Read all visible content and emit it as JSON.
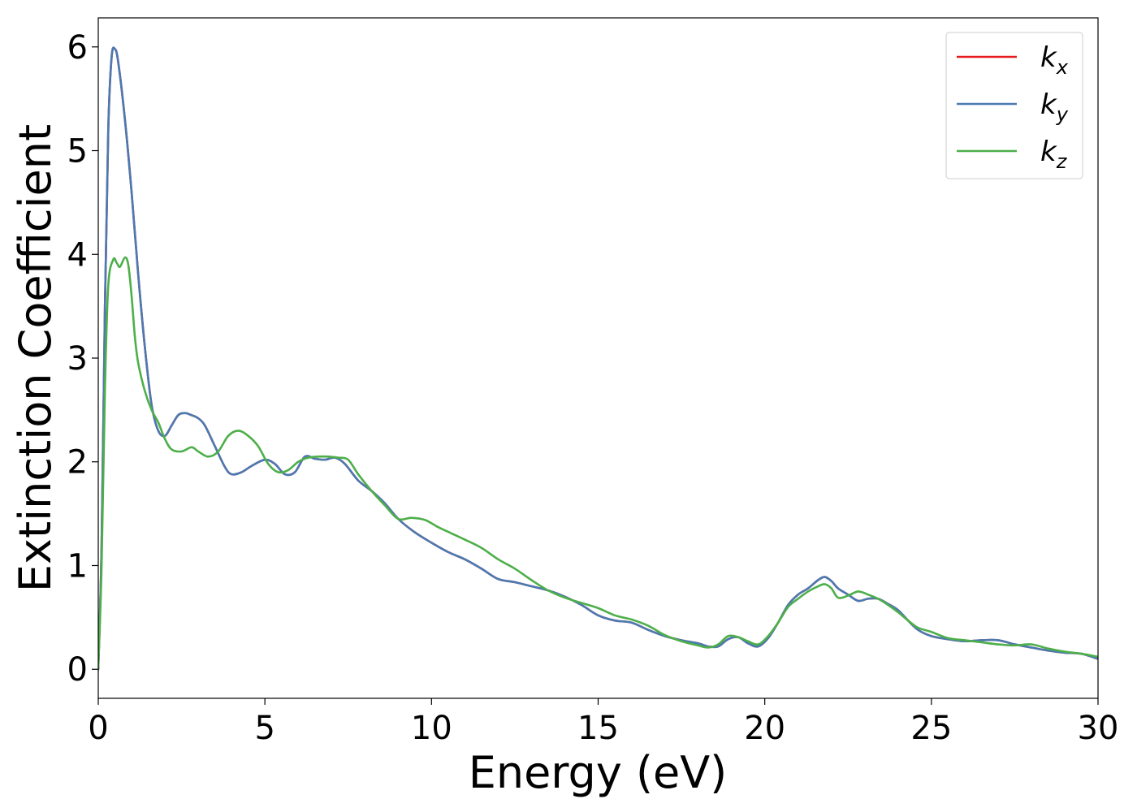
{
  "chart_data": {
    "type": "line",
    "xlabel": "Energy (eV)",
    "ylabel": "Extinction Coefficient",
    "xlim": [
      0,
      30
    ],
    "ylim": [
      -0.28,
      6.28
    ],
    "xticks": [
      "0",
      "5",
      "10",
      "15",
      "20",
      "25",
      "30"
    ],
    "yticks": [
      "0",
      "1",
      "2",
      "3",
      "4",
      "5",
      "6"
    ],
    "grid": false,
    "legend_position": "top-right",
    "series": [
      {
        "name": "k_x",
        "label_base": "k",
        "label_sub": "x",
        "color": "#e41a1c",
        "x": [
          0,
          0.1,
          0.2,
          0.3,
          0.4,
          0.5,
          0.6,
          0.8,
          1.0,
          1.2,
          1.4,
          1.6,
          1.8,
          2.0,
          2.2,
          2.4,
          2.6,
          2.8,
          3.0,
          3.2,
          3.5,
          3.8,
          4.0,
          4.3,
          4.6,
          5.0,
          5.3,
          5.6,
          5.9,
          6.2,
          6.5,
          6.8,
          7.1,
          7.4,
          7.8,
          8.2,
          8.6,
          9.0,
          9.5,
          10.0,
          10.5,
          11.0,
          11.5,
          12.0,
          12.5,
          13.0,
          13.5,
          14.0,
          14.5,
          15.0,
          15.5,
          16.0,
          16.5,
          17.0,
          17.5,
          18.0,
          18.3,
          18.6,
          18.9,
          19.2,
          19.5,
          19.8,
          20.1,
          20.4,
          20.7,
          21.0,
          21.3,
          21.6,
          21.8,
          22.0,
          22.2,
          22.5,
          22.8,
          23.1,
          23.4,
          23.7,
          24.0,
          24.3,
          24.6,
          25.0,
          25.5,
          26.0,
          26.5,
          27.0,
          27.5,
          28.0,
          28.5,
          29.0,
          29.5,
          30.0
        ],
        "y": [
          0.0,
          1.2,
          3.5,
          5.2,
          5.9,
          5.98,
          5.85,
          5.3,
          4.6,
          3.8,
          3.1,
          2.55,
          2.3,
          2.25,
          2.35,
          2.45,
          2.47,
          2.45,
          2.42,
          2.35,
          2.15,
          1.95,
          1.88,
          1.9,
          1.96,
          2.02,
          1.98,
          1.88,
          1.9,
          2.05,
          2.03,
          2.02,
          2.04,
          1.98,
          1.82,
          1.72,
          1.6,
          1.45,
          1.32,
          1.22,
          1.13,
          1.06,
          0.97,
          0.87,
          0.84,
          0.8,
          0.76,
          0.7,
          0.62,
          0.52,
          0.47,
          0.45,
          0.38,
          0.32,
          0.28,
          0.25,
          0.22,
          0.22,
          0.29,
          0.31,
          0.25,
          0.22,
          0.3,
          0.45,
          0.62,
          0.72,
          0.78,
          0.86,
          0.89,
          0.85,
          0.78,
          0.72,
          0.66,
          0.68,
          0.68,
          0.63,
          0.57,
          0.47,
          0.38,
          0.32,
          0.29,
          0.27,
          0.28,
          0.28,
          0.24,
          0.21,
          0.18,
          0.16,
          0.15,
          0.1
        ]
      },
      {
        "name": "k_y",
        "label_base": "k",
        "label_sub": "y",
        "color": "#4a7ab2",
        "x": [
          0,
          0.1,
          0.2,
          0.3,
          0.4,
          0.5,
          0.6,
          0.8,
          1.0,
          1.2,
          1.4,
          1.6,
          1.8,
          2.0,
          2.2,
          2.4,
          2.6,
          2.8,
          3.0,
          3.2,
          3.5,
          3.8,
          4.0,
          4.3,
          4.6,
          5.0,
          5.3,
          5.6,
          5.9,
          6.2,
          6.5,
          6.8,
          7.1,
          7.4,
          7.8,
          8.2,
          8.6,
          9.0,
          9.5,
          10.0,
          10.5,
          11.0,
          11.5,
          12.0,
          12.5,
          13.0,
          13.5,
          14.0,
          14.5,
          15.0,
          15.5,
          16.0,
          16.5,
          17.0,
          17.5,
          18.0,
          18.3,
          18.6,
          18.9,
          19.2,
          19.5,
          19.8,
          20.1,
          20.4,
          20.7,
          21.0,
          21.3,
          21.6,
          21.8,
          22.0,
          22.2,
          22.5,
          22.8,
          23.1,
          23.4,
          23.7,
          24.0,
          24.3,
          24.6,
          25.0,
          25.5,
          26.0,
          26.5,
          27.0,
          27.5,
          28.0,
          28.5,
          29.0,
          29.5,
          30.0
        ],
        "y": [
          0.0,
          1.2,
          3.5,
          5.2,
          5.9,
          5.98,
          5.85,
          5.3,
          4.6,
          3.8,
          3.1,
          2.55,
          2.3,
          2.25,
          2.35,
          2.45,
          2.47,
          2.45,
          2.42,
          2.35,
          2.15,
          1.95,
          1.88,
          1.9,
          1.96,
          2.02,
          1.98,
          1.88,
          1.9,
          2.05,
          2.03,
          2.02,
          2.04,
          1.98,
          1.82,
          1.72,
          1.6,
          1.45,
          1.32,
          1.22,
          1.13,
          1.06,
          0.97,
          0.87,
          0.84,
          0.8,
          0.76,
          0.7,
          0.62,
          0.52,
          0.47,
          0.45,
          0.38,
          0.32,
          0.28,
          0.25,
          0.22,
          0.22,
          0.29,
          0.31,
          0.25,
          0.22,
          0.3,
          0.45,
          0.62,
          0.72,
          0.78,
          0.86,
          0.89,
          0.85,
          0.78,
          0.72,
          0.66,
          0.68,
          0.68,
          0.63,
          0.57,
          0.47,
          0.38,
          0.32,
          0.29,
          0.27,
          0.28,
          0.28,
          0.24,
          0.21,
          0.18,
          0.16,
          0.15,
          0.1
        ]
      },
      {
        "name": "k_z",
        "label_base": "k",
        "label_sub": "z",
        "color": "#4daf4a",
        "x": [
          0,
          0.1,
          0.2,
          0.3,
          0.45,
          0.55,
          0.65,
          0.8,
          0.9,
          1.0,
          1.1,
          1.2,
          1.4,
          1.6,
          1.8,
          2.0,
          2.2,
          2.5,
          2.8,
          3.0,
          3.3,
          3.6,
          3.9,
          4.2,
          4.5,
          4.8,
          5.1,
          5.4,
          5.7,
          6.0,
          6.3,
          6.6,
          6.9,
          7.2,
          7.5,
          7.8,
          8.2,
          8.6,
          9.0,
          9.4,
          9.8,
          10.2,
          10.6,
          11.0,
          11.5,
          12.0,
          12.5,
          13.0,
          13.5,
          14.0,
          14.5,
          15.0,
          15.5,
          16.0,
          16.5,
          17.0,
          17.5,
          18.0,
          18.3,
          18.6,
          18.9,
          19.2,
          19.5,
          19.8,
          20.1,
          20.4,
          20.7,
          21.0,
          21.3,
          21.6,
          21.8,
          22.0,
          22.2,
          22.5,
          22.8,
          23.1,
          23.4,
          23.7,
          24.0,
          24.3,
          24.6,
          25.0,
          25.5,
          26.0,
          26.5,
          27.0,
          27.5,
          28.0,
          28.5,
          29.0,
          29.5,
          30.0
        ],
        "y": [
          0.0,
          1.0,
          2.7,
          3.7,
          3.95,
          3.92,
          3.88,
          3.97,
          3.9,
          3.6,
          3.2,
          2.95,
          2.68,
          2.5,
          2.38,
          2.22,
          2.12,
          2.1,
          2.14,
          2.1,
          2.05,
          2.1,
          2.25,
          2.3,
          2.25,
          2.15,
          1.98,
          1.9,
          1.92,
          2.0,
          2.04,
          2.05,
          2.05,
          2.04,
          2.02,
          1.88,
          1.72,
          1.58,
          1.45,
          1.46,
          1.44,
          1.37,
          1.31,
          1.25,
          1.17,
          1.06,
          0.97,
          0.86,
          0.76,
          0.69,
          0.64,
          0.59,
          0.52,
          0.48,
          0.42,
          0.33,
          0.27,
          0.23,
          0.21,
          0.24,
          0.32,
          0.31,
          0.27,
          0.24,
          0.32,
          0.45,
          0.6,
          0.68,
          0.75,
          0.8,
          0.82,
          0.78,
          0.69,
          0.71,
          0.75,
          0.72,
          0.68,
          0.62,
          0.55,
          0.47,
          0.4,
          0.36,
          0.3,
          0.28,
          0.26,
          0.24,
          0.23,
          0.24,
          0.2,
          0.17,
          0.15,
          0.12
        ]
      }
    ]
  }
}
